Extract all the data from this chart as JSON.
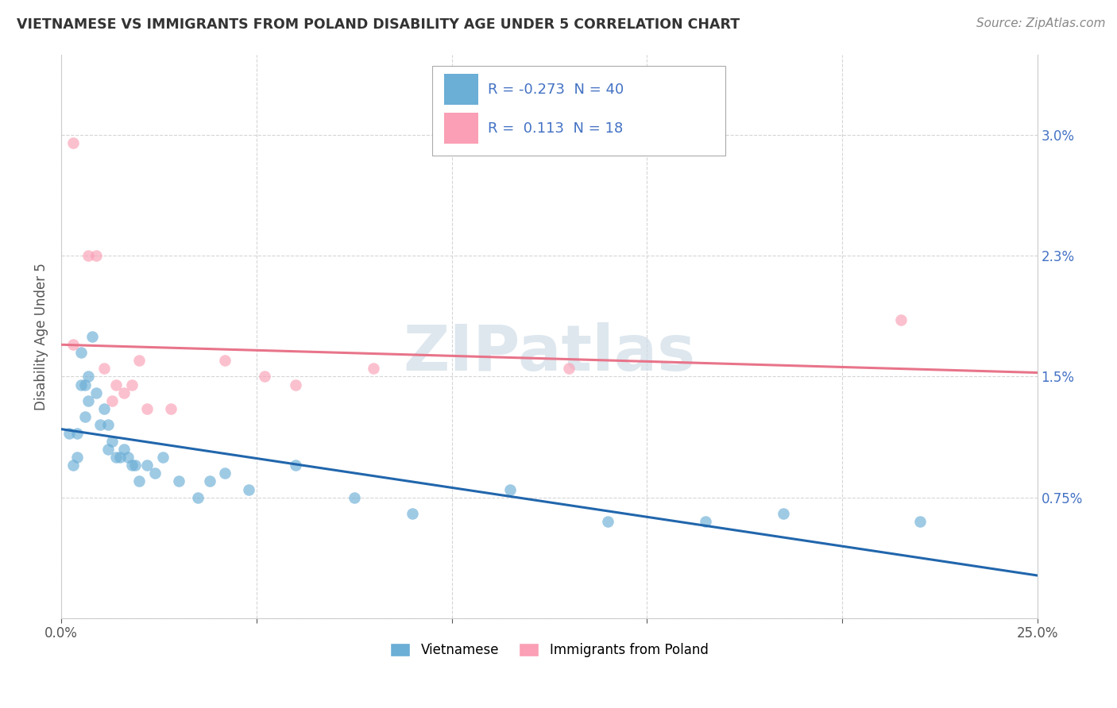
{
  "title": "VIETNAMESE VS IMMIGRANTS FROM POLAND DISABILITY AGE UNDER 5 CORRELATION CHART",
  "source": "Source: ZipAtlas.com",
  "ylabel": "Disability Age Under 5",
  "xlim": [
    0.0,
    0.25
  ],
  "ylim": [
    0.0,
    0.035
  ],
  "ytick_positions": [
    0.0,
    0.0075,
    0.015,
    0.0225,
    0.03
  ],
  "ytick_labels": [
    "",
    "0.75%",
    "1.5%",
    "2.3%",
    "3.0%"
  ],
  "xtick_positions": [
    0.0,
    0.05,
    0.1,
    0.15,
    0.2,
    0.25
  ],
  "xtick_labels": [
    "0.0%",
    "",
    "",
    "",
    "",
    "25.0%"
  ],
  "viet_color": "#6baed6",
  "polish_color": "#fa9fb5",
  "viet_line_color": "#2166ac",
  "polish_line_color": "#e8748a",
  "watermark": "ZIPatlas",
  "background_color": "#ffffff",
  "grid_color": "#cccccc",
  "vietnamese_x": [
    0.002,
    0.003,
    0.004,
    0.004,
    0.005,
    0.005,
    0.006,
    0.006,
    0.007,
    0.007,
    0.008,
    0.009,
    0.01,
    0.011,
    0.012,
    0.012,
    0.013,
    0.014,
    0.015,
    0.016,
    0.017,
    0.018,
    0.019,
    0.02,
    0.022,
    0.024,
    0.026,
    0.03,
    0.035,
    0.038,
    0.042,
    0.048,
    0.06,
    0.075,
    0.09,
    0.115,
    0.14,
    0.165,
    0.185,
    0.22
  ],
  "vietnamese_y": [
    0.0115,
    0.0095,
    0.0115,
    0.01,
    0.0165,
    0.0145,
    0.0125,
    0.0145,
    0.0135,
    0.015,
    0.0175,
    0.014,
    0.012,
    0.013,
    0.0105,
    0.012,
    0.011,
    0.01,
    0.01,
    0.0105,
    0.01,
    0.0095,
    0.0095,
    0.0085,
    0.0095,
    0.009,
    0.01,
    0.0085,
    0.0075,
    0.0085,
    0.009,
    0.008,
    0.0095,
    0.0075,
    0.0065,
    0.008,
    0.006,
    0.006,
    0.0065,
    0.006
  ],
  "polish_x": [
    0.003,
    0.003,
    0.007,
    0.009,
    0.011,
    0.013,
    0.014,
    0.016,
    0.018,
    0.02,
    0.022,
    0.028,
    0.042,
    0.052,
    0.06,
    0.08,
    0.13,
    0.215
  ],
  "polish_y": [
    0.0295,
    0.017,
    0.0225,
    0.0225,
    0.0155,
    0.0135,
    0.0145,
    0.014,
    0.0145,
    0.016,
    0.013,
    0.013,
    0.016,
    0.015,
    0.0145,
    0.0155,
    0.0155,
    0.0185
  ]
}
